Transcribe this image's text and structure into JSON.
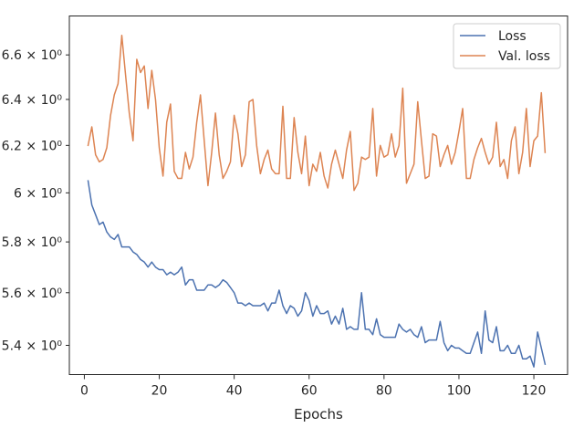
{
  "chart_data": {
    "type": "line",
    "title": "",
    "xlabel": "Epochs",
    "ylabel": "",
    "y_scale": "log",
    "xlim": [
      -4,
      129
    ],
    "ylim": [
      5.292,
      6.78
    ],
    "x_ticks": [
      0,
      20,
      40,
      60,
      80,
      100,
      120
    ],
    "x_tick_labels": [
      "0",
      "20",
      "40",
      "60",
      "80",
      "100",
      "120"
    ],
    "y_ticks": [
      5.4,
      5.6,
      5.8,
      6.0,
      6.2,
      6.4,
      6.6
    ],
    "y_tick_labels": [
      "5.4 × 10⁰",
      "5.6 × 10⁰",
      "5.8 × 10⁰",
      "6 × 10⁰",
      "6.2 × 10⁰",
      "6.4 × 10⁰",
      "6.6 × 10⁰"
    ],
    "grid": false,
    "legend_position": "top-right",
    "series": [
      {
        "name": "Loss",
        "color": "#4c72b0",
        "x_start": 1,
        "values": [
          6.05,
          5.95,
          5.91,
          5.87,
          5.88,
          5.84,
          5.82,
          5.81,
          5.83,
          5.78,
          5.78,
          5.78,
          5.76,
          5.75,
          5.73,
          5.72,
          5.7,
          5.72,
          5.7,
          5.69,
          5.69,
          5.67,
          5.68,
          5.67,
          5.68,
          5.7,
          5.63,
          5.65,
          5.65,
          5.61,
          5.61,
          5.61,
          5.63,
          5.63,
          5.62,
          5.63,
          5.65,
          5.64,
          5.62,
          5.6,
          5.56,
          5.56,
          5.55,
          5.56,
          5.55,
          5.55,
          5.55,
          5.56,
          5.53,
          5.56,
          5.56,
          5.61,
          5.55,
          5.52,
          5.55,
          5.54,
          5.51,
          5.53,
          5.6,
          5.57,
          5.51,
          5.55,
          5.52,
          5.52,
          5.53,
          5.48,
          5.51,
          5.48,
          5.54,
          5.46,
          5.47,
          5.46,
          5.46,
          5.6,
          5.46,
          5.46,
          5.44,
          5.5,
          5.44,
          5.43,
          5.43,
          5.43,
          5.43,
          5.48,
          5.46,
          5.45,
          5.46,
          5.44,
          5.43,
          5.47,
          5.41,
          5.42,
          5.42,
          5.42,
          5.49,
          5.41,
          5.38,
          5.4,
          5.39,
          5.39,
          5.38,
          5.37,
          5.37,
          5.41,
          5.45,
          5.37,
          5.53,
          5.42,
          5.41,
          5.47,
          5.38,
          5.38,
          5.4,
          5.37,
          5.37,
          5.4,
          5.35,
          5.35,
          5.36,
          5.32,
          5.45,
          5.39,
          5.33
        ]
      },
      {
        "name": "Val. loss",
        "color": "#dd8452",
        "x_start": 1,
        "values": [
          6.2,
          6.28,
          6.16,
          6.13,
          6.14,
          6.19,
          6.33,
          6.42,
          6.47,
          6.69,
          6.51,
          6.34,
          6.22,
          6.58,
          6.52,
          6.55,
          6.36,
          6.53,
          6.4,
          6.19,
          6.07,
          6.3,
          6.38,
          6.09,
          6.06,
          6.06,
          6.17,
          6.1,
          6.15,
          6.3,
          6.42,
          6.22,
          6.03,
          6.17,
          6.34,
          6.16,
          6.06,
          6.09,
          6.13,
          6.33,
          6.25,
          6.11,
          6.16,
          6.39,
          6.4,
          6.2,
          6.08,
          6.14,
          6.18,
          6.1,
          6.08,
          6.08,
          6.37,
          6.06,
          6.06,
          6.32,
          6.17,
          6.08,
          6.24,
          6.03,
          6.12,
          6.09,
          6.17,
          6.07,
          6.02,
          6.12,
          6.18,
          6.12,
          6.06,
          6.18,
          6.26,
          6.01,
          6.04,
          6.15,
          6.14,
          6.15,
          6.36,
          6.07,
          6.2,
          6.15,
          6.16,
          6.25,
          6.15,
          6.2,
          6.45,
          6.04,
          6.08,
          6.12,
          6.39,
          6.22,
          6.06,
          6.07,
          6.25,
          6.24,
          6.11,
          6.16,
          6.2,
          6.12,
          6.17,
          6.26,
          6.36,
          6.06,
          6.06,
          6.14,
          6.19,
          6.23,
          6.17,
          6.12,
          6.15,
          6.3,
          6.11,
          6.14,
          6.06,
          6.22,
          6.28,
          6.08,
          6.17,
          6.36,
          6.11,
          6.22,
          6.24,
          6.43,
          6.17
        ]
      }
    ]
  }
}
